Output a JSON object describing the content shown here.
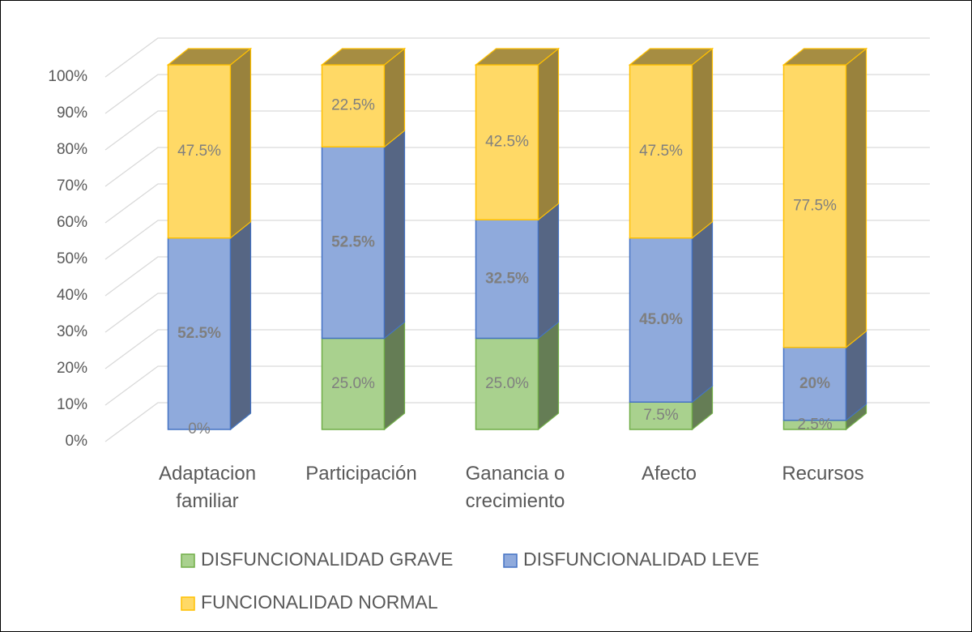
{
  "chart_data": {
    "type": "bar3d_stacked",
    "categories": [
      "Adaptacion familiar",
      "Participación",
      "Ganancia o crecimiento",
      "Afecto",
      "Recursos"
    ],
    "series": [
      {
        "name": "DISFUNCIONALIDAD GRAVE",
        "color": "#a9d18e",
        "edge": "#70ad47",
        "values": [
          0,
          25.0,
          25.0,
          7.5,
          2.5
        ],
        "value_labels": [
          "0%",
          "25.0%",
          "25.0%",
          "7.5%",
          "2.5%"
        ]
      },
      {
        "name": "DISFUNCIONALIDAD LEVE",
        "color": "#8faadc",
        "edge": "#4472c4",
        "values": [
          52.5,
          52.5,
          32.5,
          45.0,
          20
        ],
        "value_labels": [
          "52.5%",
          "52.5%",
          "32.5%",
          "45.0%",
          "20%"
        ]
      },
      {
        "name": "FUNCIONALIDAD NORMAL",
        "color": "#ffd966",
        "edge": "#ffc000",
        "values": [
          47.5,
          22.5,
          42.5,
          47.5,
          77.5
        ],
        "value_labels": [
          "47.5%",
          "22.5%",
          "42.5%",
          "47.5%",
          "77.5%"
        ]
      }
    ],
    "ylim": [
      0,
      100
    ],
    "yticks": [
      {
        "value": 0,
        "label": "0%"
      },
      {
        "value": 10,
        "label": "10%"
      },
      {
        "value": 20,
        "label": "20%"
      },
      {
        "value": 30,
        "label": "30%"
      },
      {
        "value": 40,
        "label": "40%"
      },
      {
        "value": 50,
        "label": "50%"
      },
      {
        "value": 60,
        "label": "60%"
      },
      {
        "value": 70,
        "label": "70%"
      },
      {
        "value": 80,
        "label": "80%"
      },
      {
        "value": 90,
        "label": "90%"
      },
      {
        "value": 100,
        "label": "100%"
      }
    ],
    "grid": true
  }
}
